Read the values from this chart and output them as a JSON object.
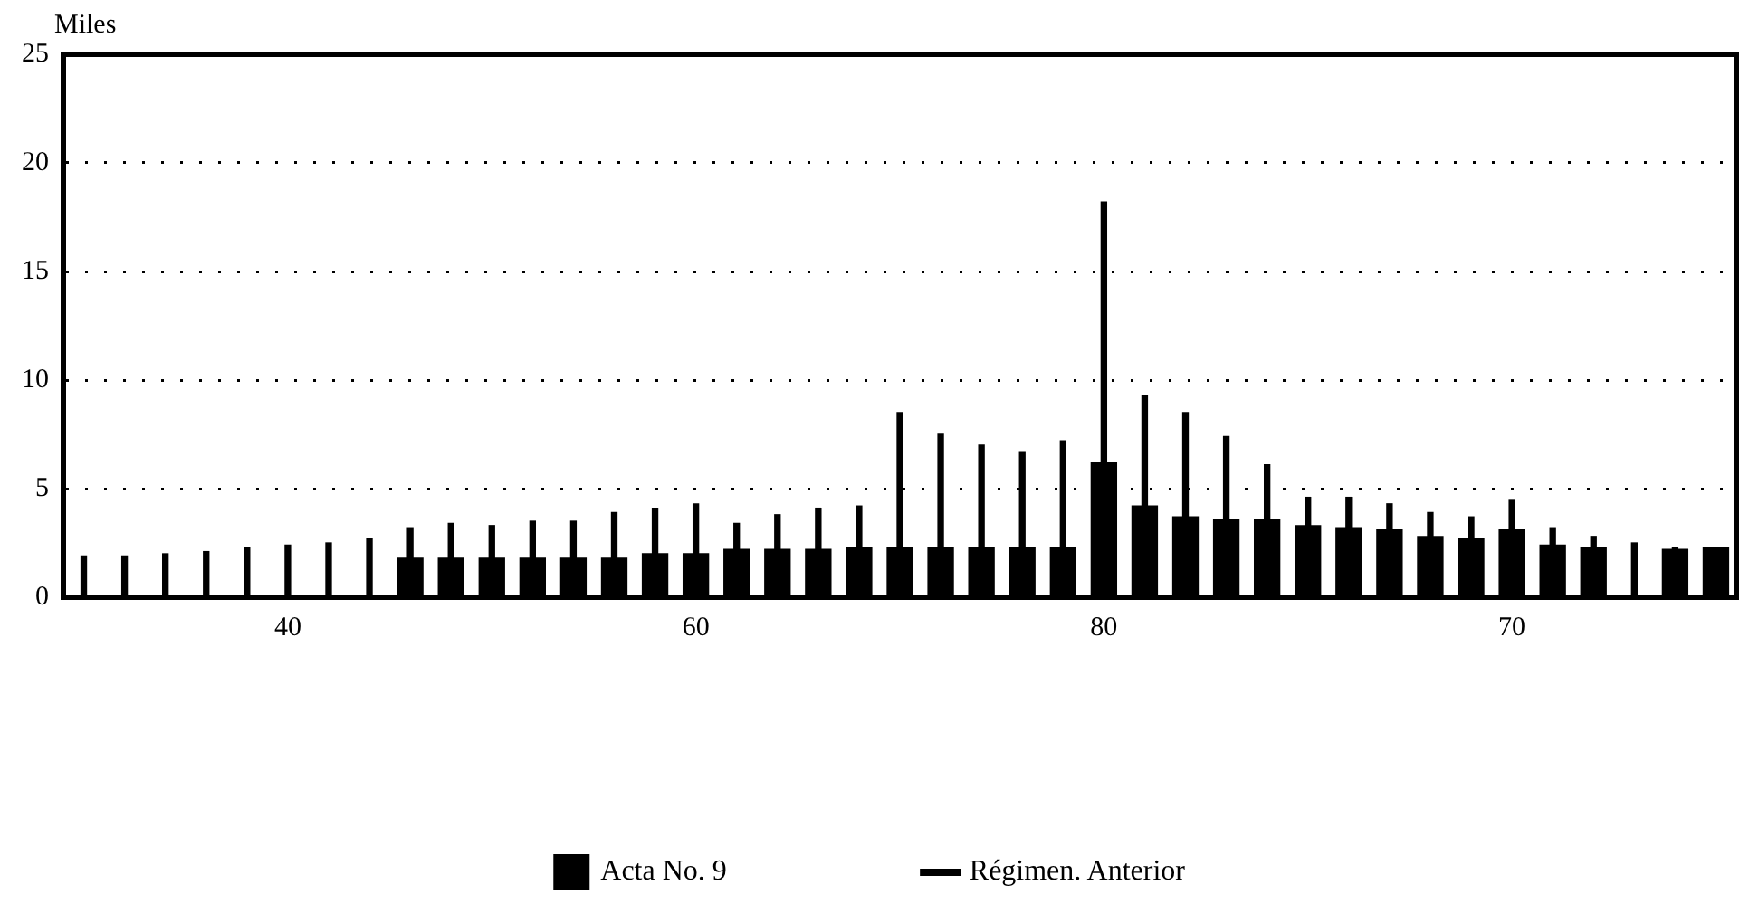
{
  "chart_data": {
    "type": "bar",
    "ylabel": "Miles",
    "categories": [
      null,
      null,
      null,
      null,
      null,
      "40",
      null,
      null,
      null,
      null,
      null,
      null,
      null,
      null,
      null,
      "60",
      null,
      null,
      null,
      null,
      null,
      null,
      null,
      null,
      null,
      "80",
      null,
      null,
      null,
      null,
      null,
      null,
      null,
      null,
      null,
      "70",
      null,
      null,
      null,
      null,
      null
    ],
    "series": [
      {
        "name": "Acta No. 9",
        "color": "#000000",
        "values": [
          null,
          null,
          null,
          null,
          null,
          null,
          null,
          null,
          1.8,
          1.8,
          1.8,
          1.8,
          1.8,
          1.8,
          2.0,
          2.0,
          2.2,
          2.2,
          2.2,
          2.3,
          2.3,
          2.3,
          2.3,
          2.3,
          2.3,
          6.2,
          4.2,
          3.7,
          3.6,
          3.6,
          3.3,
          3.2,
          3.1,
          2.8,
          2.7,
          3.1,
          2.4,
          2.3,
          null,
          2.2,
          2.3
        ]
      },
      {
        "name": "Régimen. Anterior",
        "color": "#000000",
        "values": [
          1.9,
          1.9,
          2.0,
          2.1,
          2.3,
          2.4,
          2.5,
          2.7,
          3.2,
          3.4,
          3.3,
          3.5,
          3.5,
          3.9,
          4.1,
          4.3,
          3.4,
          3.8,
          4.1,
          4.2,
          8.5,
          7.5,
          7.0,
          6.7,
          7.2,
          18.2,
          9.3,
          8.5,
          7.4,
          6.1,
          4.6,
          4.6,
          4.3,
          3.9,
          3.7,
          4.5,
          3.2,
          2.8,
          2.5,
          2.3,
          2.3
        ]
      }
    ],
    "ylim": [
      0,
      25
    ],
    "yticks": [
      0,
      5,
      10,
      15,
      20,
      25
    ],
    "grid": "y",
    "legend": "bottom"
  }
}
